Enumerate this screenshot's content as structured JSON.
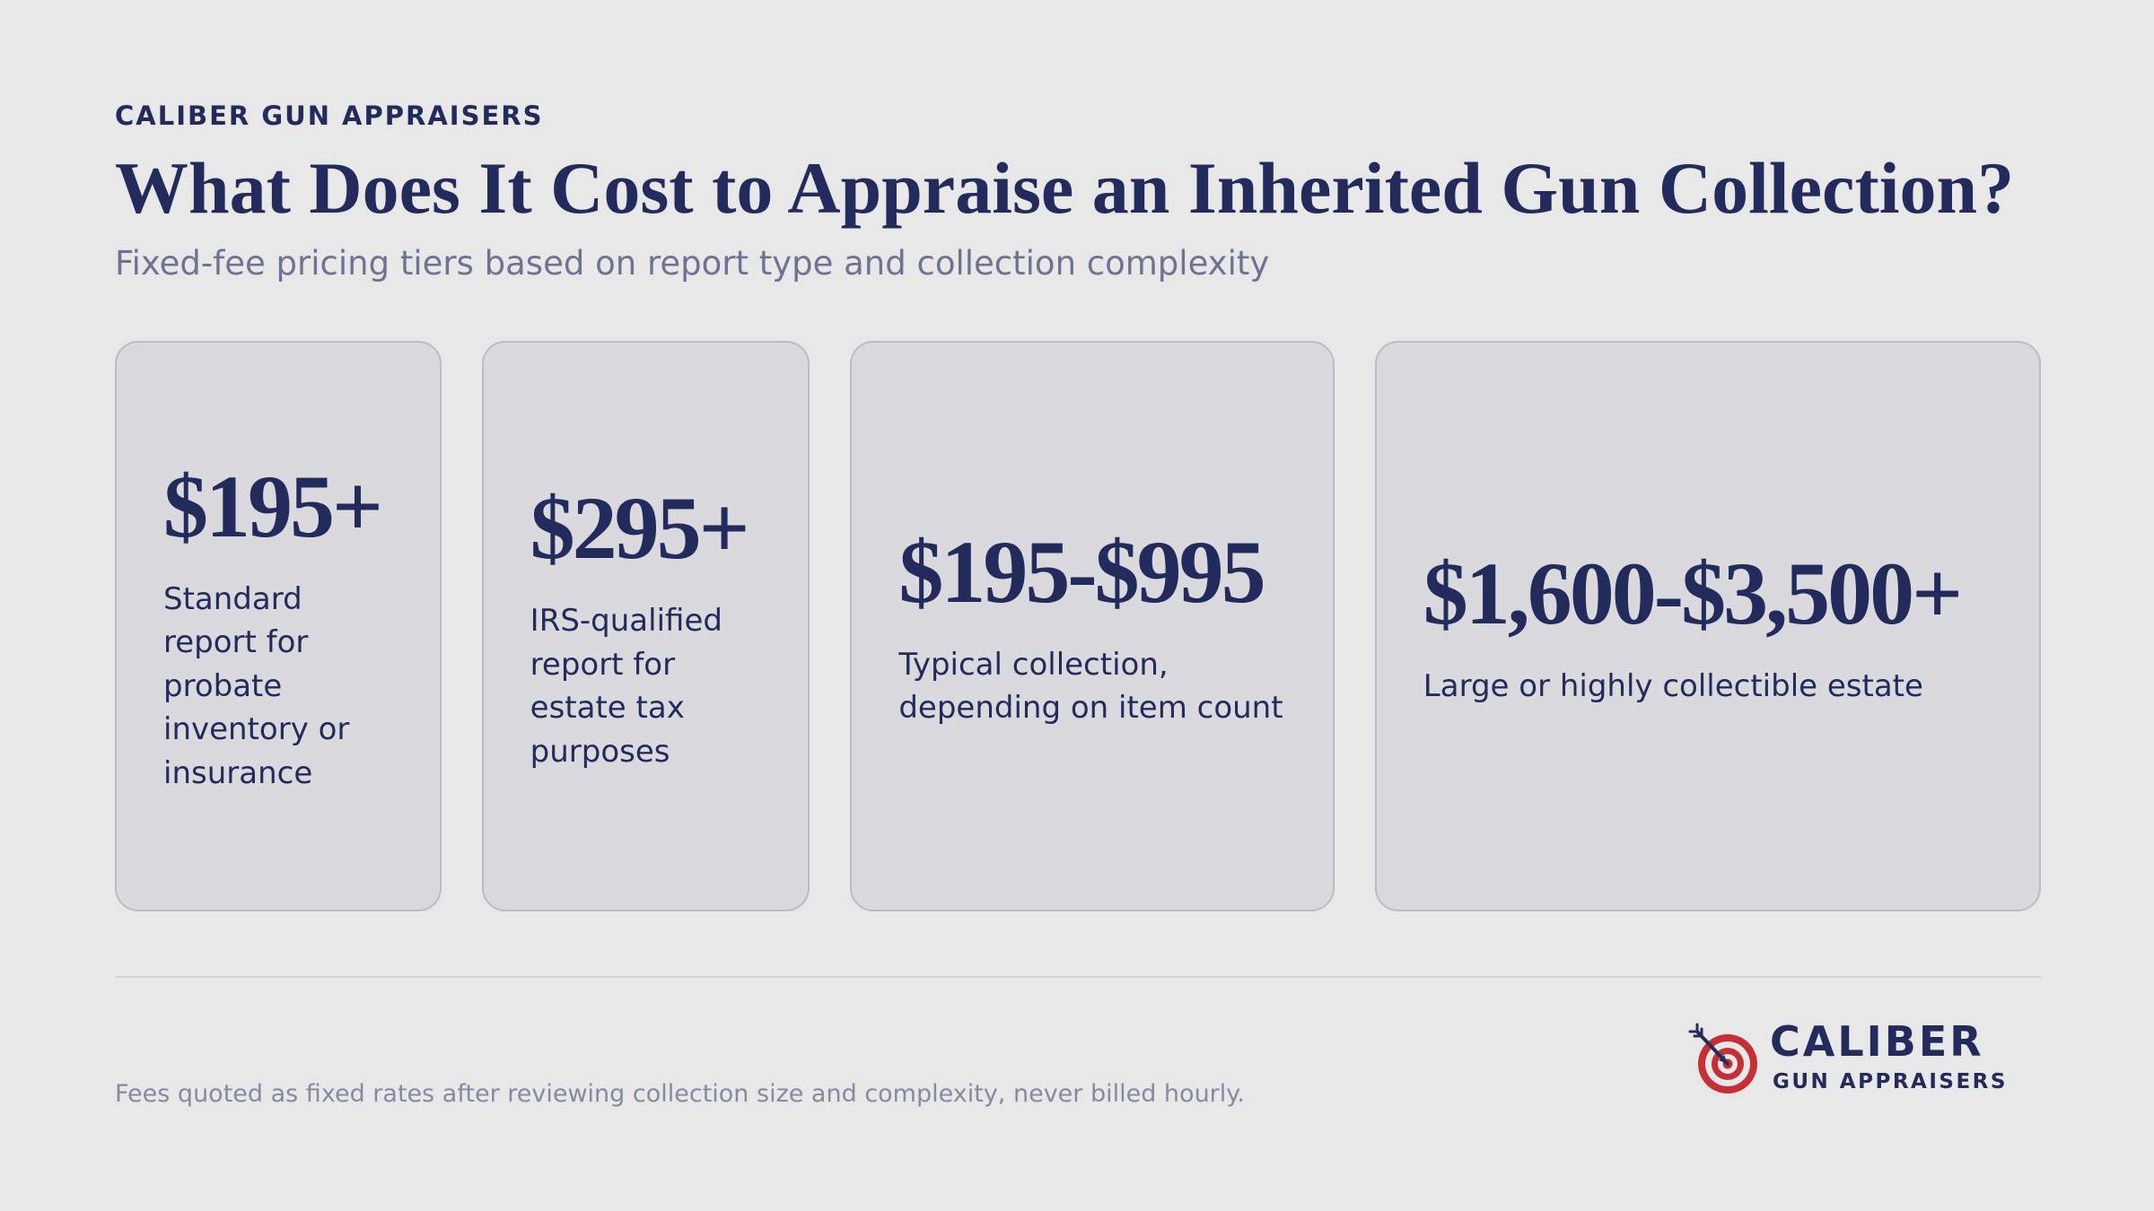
{
  "header": {
    "eyebrow": "CALIBER GUN APPRAISERS",
    "title": "What Does It Cost to Appraise an Inherited Gun Collection?",
    "subtitle": "Fixed-fee pricing tiers based on report type and collection complexity"
  },
  "tiers": [
    {
      "price": "$195+",
      "description": "Standard report for probate inventory or insurance"
    },
    {
      "price": "$295+",
      "description": "IRS-qualified report for estate tax purposes"
    },
    {
      "price": "$195-$995",
      "description": "Typical collection, depending on item count"
    },
    {
      "price": "$1,600-$3,500+",
      "description": "Large or highly collectible estate"
    }
  ],
  "footer": {
    "note": "Fees quoted as fixed rates after reviewing collection size and complexity, never billed hourly."
  },
  "logo": {
    "name": "CALIBER",
    "tagline": "GUN APPRAISERS",
    "icon": "target-icon",
    "colors": {
      "navy": "#232b5c",
      "red": "#c62f36"
    }
  }
}
